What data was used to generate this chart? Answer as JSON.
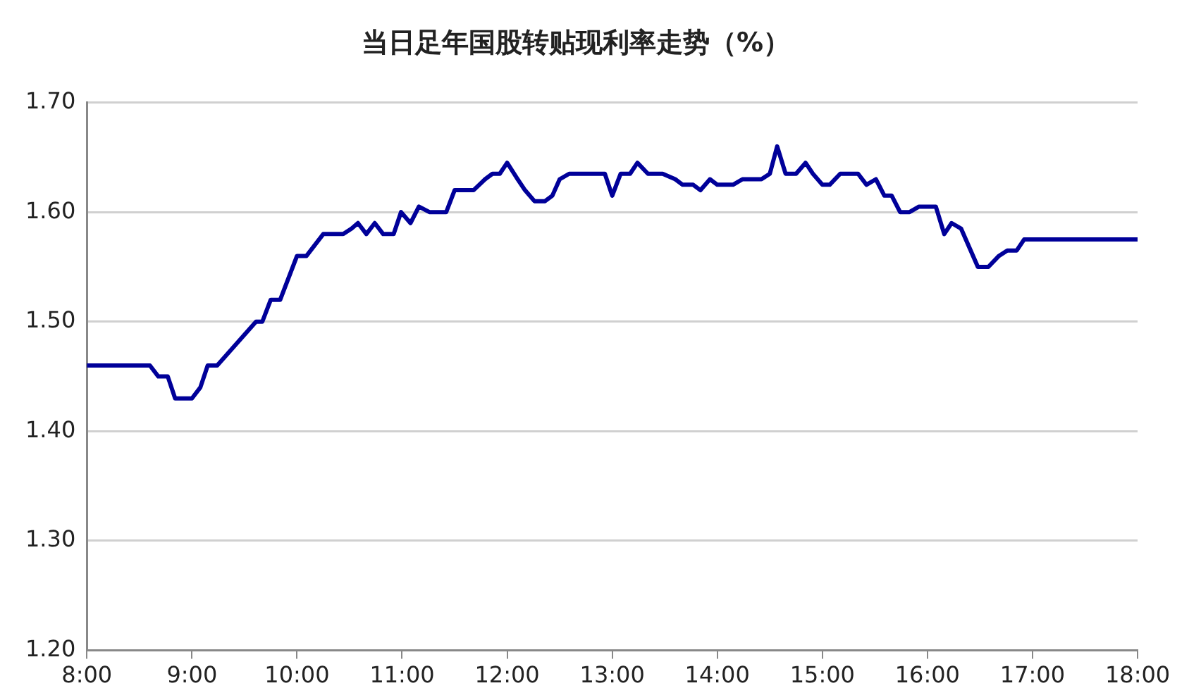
{
  "chart_data": {
    "type": "line",
    "title": "当日足年国股转贴现利率走势（%）",
    "x": [
      8,
      8.6,
      8.68,
      8.77,
      8.84,
      9,
      9.08,
      9.15,
      9.24,
      9.61,
      9.67,
      9.75,
      9.84,
      10,
      10.09,
      10.25,
      10.44,
      10.52,
      10.58,
      10.66,
      10.74,
      10.82,
      10.92,
      10.99,
      11.08,
      11.16,
      11.26,
      11.42,
      11.5,
      11.68,
      11.79,
      11.86,
      11.93,
      12,
      12.1,
      12.17,
      12.26,
      12.36,
      12.43,
      12.5,
      12.59,
      12.93,
      13,
      13.08,
      13.17,
      13.24,
      13.34,
      13.48,
      13.6,
      13.67,
      13.77,
      13.84,
      13.93,
      14,
      14.15,
      14.24,
      14.42,
      14.5,
      14.57,
      14.65,
      14.75,
      14.84,
      14.91,
      15,
      15.07,
      15.17,
      15.34,
      15.42,
      15.51,
      15.59,
      15.66,
      15.74,
      15.83,
      15.92,
      16.08,
      16.16,
      16.23,
      16.32,
      16.48,
      16.58,
      16.68,
      16.76,
      16.85,
      16.92,
      18
    ],
    "series": [
      {
        "color": "#000099",
        "values": [
          1.46,
          1.46,
          1.45,
          1.45,
          1.43,
          1.43,
          1.44,
          1.46,
          1.46,
          1.5,
          1.5,
          1.52,
          1.52,
          1.56,
          1.56,
          1.58,
          1.58,
          1.585,
          1.59,
          1.58,
          1.59,
          1.58,
          1.58,
          1.6,
          1.59,
          1.605,
          1.6,
          1.6,
          1.62,
          1.62,
          1.63,
          1.635,
          1.635,
          1.645,
          1.63,
          1.62,
          1.61,
          1.61,
          1.615,
          1.63,
          1.635,
          1.635,
          1.615,
          1.635,
          1.635,
          1.645,
          1.635,
          1.635,
          1.63,
          1.625,
          1.625,
          1.62,
          1.63,
          1.625,
          1.625,
          1.63,
          1.63,
          1.635,
          1.66,
          1.635,
          1.635,
          1.645,
          1.635,
          1.625,
          1.625,
          1.635,
          1.635,
          1.625,
          1.63,
          1.615,
          1.615,
          1.6,
          1.6,
          1.605,
          1.605,
          1.58,
          1.59,
          1.585,
          1.55,
          1.55,
          1.56,
          1.565,
          1.565,
          1.575,
          1.575
        ]
      }
    ],
    "xlim": [
      8,
      18
    ],
    "xticks": [
      {
        "value": 8,
        "label": "8:00"
      },
      {
        "value": 9,
        "label": "9:00"
      },
      {
        "value": 10,
        "label": "10:00"
      },
      {
        "value": 11,
        "label": "11:00"
      },
      {
        "value": 12,
        "label": "12:00"
      },
      {
        "value": 13,
        "label": "13:00"
      },
      {
        "value": 14,
        "label": "14:00"
      },
      {
        "value": 15,
        "label": "15:00"
      },
      {
        "value": 16,
        "label": "16:00"
      },
      {
        "value": 17,
        "label": "17:00"
      },
      {
        "value": 18,
        "label": "18:00"
      }
    ],
    "ylim": [
      1.2,
      1.7
    ],
    "yticks": [
      {
        "value": 1.2,
        "label": "1.20"
      },
      {
        "value": 1.3,
        "label": "1.30"
      },
      {
        "value": 1.4,
        "label": "1.40"
      },
      {
        "value": 1.5,
        "label": "1.50"
      },
      {
        "value": 1.6,
        "label": "1.60"
      },
      {
        "value": 1.7,
        "label": "1.70"
      }
    ],
    "grid": "y",
    "legend": false,
    "marker": "none",
    "line_style": "solid"
  }
}
